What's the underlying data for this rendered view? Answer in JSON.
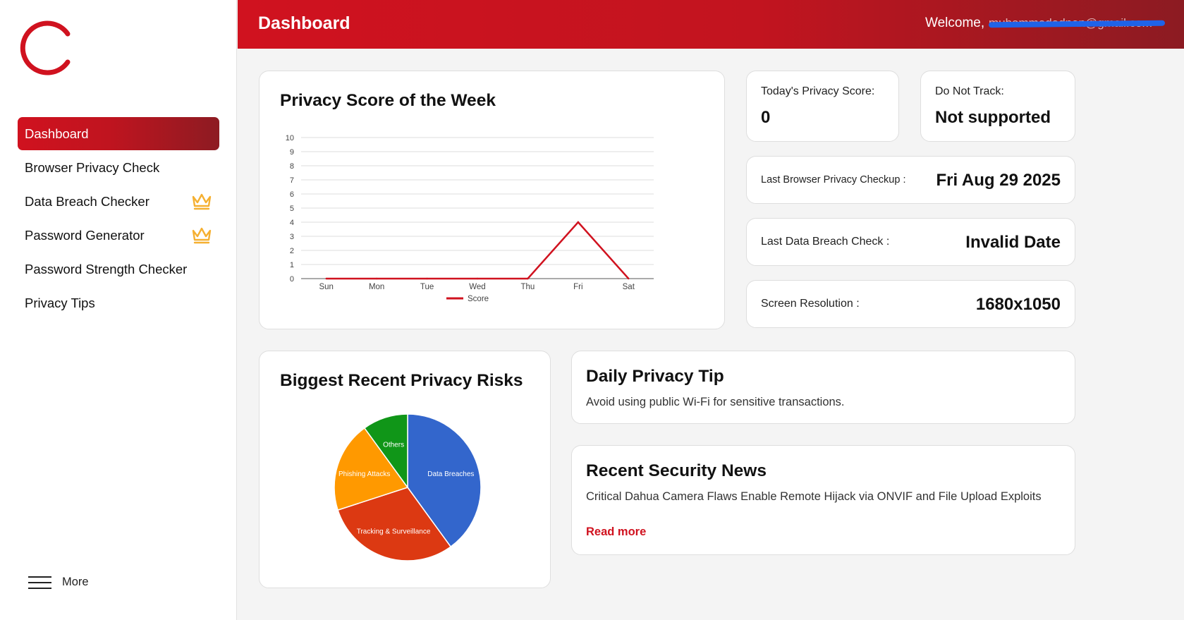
{
  "sidebar": {
    "logo_icon": "c-ring-logo",
    "items": [
      {
        "label": "Dashboard",
        "active": true,
        "premium": false
      },
      {
        "label": "Browser Privacy Check",
        "active": false,
        "premium": false
      },
      {
        "label": "Data Breach Checker",
        "active": false,
        "premium": true
      },
      {
        "label": "Password Generator",
        "active": false,
        "premium": true
      },
      {
        "label": "Password Strength Checker",
        "active": false,
        "premium": false
      },
      {
        "label": "Privacy Tips",
        "active": false,
        "premium": false
      }
    ],
    "more_label": "More"
  },
  "header": {
    "title": "Dashboard",
    "welcome_label": "Welcome,",
    "email_redacted": "muhammadadnan@gmail.com"
  },
  "stats": {
    "privacy_score": {
      "label": "Today's Privacy Score:",
      "value": "0"
    },
    "do_not_track": {
      "label": "Do Not Track:",
      "value": "Not supported"
    },
    "last_checkup": {
      "label": "Last Browser Privacy Checkup :",
      "value": "Fri Aug 29 2025"
    },
    "last_breach": {
      "label": "Last Data Breach Check :",
      "value": "Invalid Date"
    },
    "resolution": {
      "label": "Screen Resolution :",
      "value": "1680x1050"
    }
  },
  "tip": {
    "title": "Daily Privacy Tip",
    "text": "Avoid using public Wi-Fi for sensitive transactions."
  },
  "news": {
    "title": "Recent Security News",
    "text": "Critical Dahua Camera Flaws Enable Remote Hijack via ONVIF and File Upload Exploits",
    "link_label": "Read more"
  },
  "colors": {
    "accent": "#d0121f",
    "accent_dark": "#8c1b22",
    "premium": "#f5b031"
  },
  "chart_data": [
    {
      "type": "line",
      "title": "Privacy Score of the Week",
      "categories": [
        "Sun",
        "Mon",
        "Tue",
        "Wed",
        "Thu",
        "Fri",
        "Sat"
      ],
      "series": [
        {
          "name": "Score",
          "values": [
            0,
            0,
            0,
            0,
            0,
            4,
            0
          ],
          "color": "#d0121f"
        }
      ],
      "y_ticks": [
        "0",
        "1",
        "2",
        "3",
        "4",
        "5",
        "6",
        "7",
        "8",
        "9",
        "10"
      ],
      "ylim": [
        0,
        10
      ],
      "grid": true,
      "legend": "bottom"
    },
    {
      "type": "pie",
      "title": "Biggest Recent Privacy Risks",
      "slices": [
        {
          "label": "Data Breaches",
          "value": 40,
          "color": "#3366cc"
        },
        {
          "label": "Tracking & Surveillance",
          "value": 30,
          "color": "#dc3912"
        },
        {
          "label": "Phishing Attacks",
          "value": 20,
          "color": "#ff9900"
        },
        {
          "label": "Others",
          "value": 10,
          "color": "#109618"
        }
      ]
    }
  ]
}
